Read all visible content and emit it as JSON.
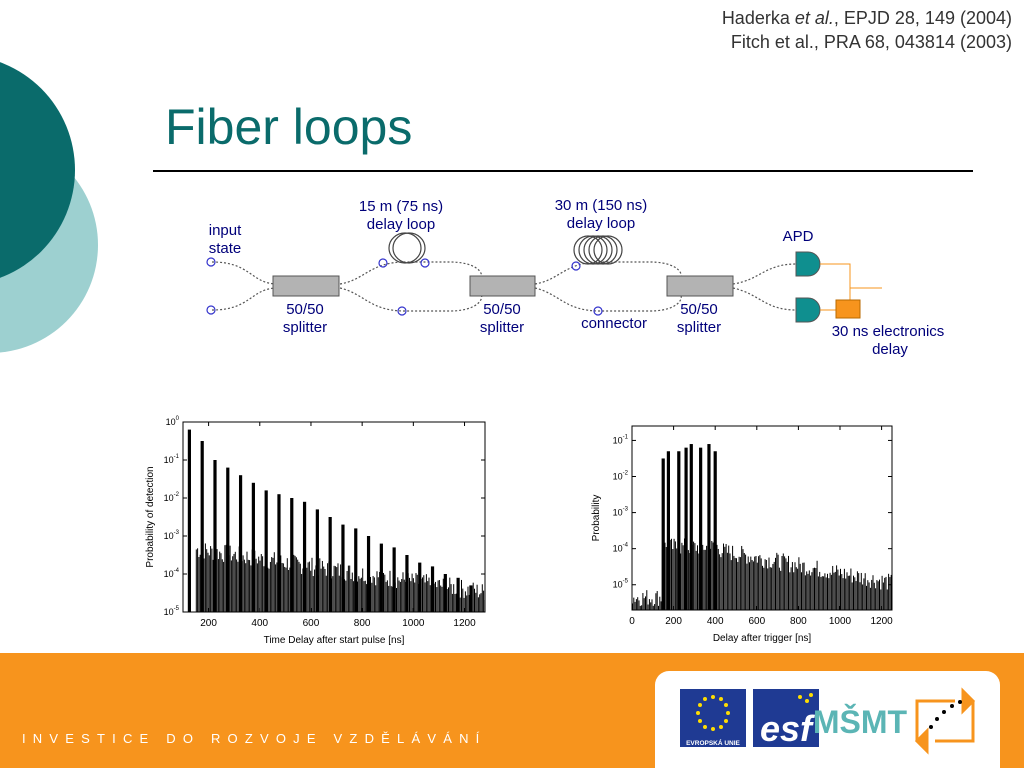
{
  "references": {
    "line1_author": "Haderka ",
    "line1_etal": "et al.",
    "line1_rest": ", EPJD 28, 149 (2004)",
    "line2": "Fitch et al., PRA 68, 043814 (2003)"
  },
  "title": "Fiber loops",
  "diagram": {
    "input_state": [
      "input",
      "state"
    ],
    "loop1": [
      "15 m (75 ns)",
      "delay loop"
    ],
    "loop2": [
      "30 m (150 ns)",
      "delay loop"
    ],
    "apd": "APD",
    "splitter": [
      "50/50",
      "splitter"
    ],
    "connector": "connector",
    "electronics": [
      "30 ns electronics",
      "delay"
    ]
  },
  "chart_data": [
    {
      "type": "bar",
      "xlabel": "Time Delay after start pulse [ns]",
      "ylabel": "Probability of detection",
      "x_ticks": [
        "200",
        "400",
        "600",
        "800",
        "1000",
        "1200"
      ],
      "y_tick_exponents": [
        "0",
        "-1",
        "-2",
        "-3",
        "-4",
        "-5"
      ],
      "y_scale": "log",
      "xlim": [
        100,
        1280
      ],
      "ylim_exp": [
        -5,
        0
      ],
      "peaks_x": [
        125,
        175,
        225,
        275,
        325,
        375,
        425,
        475,
        525,
        575,
        625,
        675,
        725,
        775,
        825,
        875,
        925,
        975,
        1025,
        1075,
        1125,
        1175,
        1225
      ],
      "peaks_exp": [
        -0.2,
        -0.5,
        -1.0,
        -1.2,
        -1.4,
        -1.6,
        -1.8,
        -1.9,
        -2.0,
        -2.1,
        -2.3,
        -2.5,
        -2.7,
        -2.8,
        -3.0,
        -3.2,
        -3.3,
        -3.5,
        -3.7,
        -3.8,
        -4.0,
        -4.1,
        -4.3
      ]
    },
    {
      "type": "bar",
      "xlabel": "Delay after trigger [ns]",
      "ylabel": "Probability",
      "x_ticks": [
        "0",
        "200",
        "400",
        "600",
        "800",
        "1000",
        "1200"
      ],
      "y_tick_exponents": [
        "-1",
        "-2",
        "-3",
        "-4",
        "-5"
      ],
      "y_scale": "log",
      "xlim": [
        0,
        1250
      ],
      "ylim_exp": [
        -5.7,
        -0.6
      ],
      "peaks_x": [
        150,
        175,
        225,
        260,
        285,
        330,
        370,
        400
      ],
      "peaks_exp": [
        -1.5,
        -1.3,
        -1.3,
        -1.2,
        -1.1,
        -1.2,
        -1.1,
        -1.3
      ]
    }
  ],
  "footer": {
    "text": "INVESTICE DO ROZVOJE VZDĚLÁVÁNÍ",
    "logos": {
      "eu_label": "EVROPSKÁ UNIE",
      "esf": "esf",
      "msmt": "MŠMT"
    }
  },
  "colors": {
    "teal_dark": "#0a6b6b",
    "teal_light": "#9dd0d0",
    "footer_orange": "#f7941d",
    "diagram_text": "#00007a",
    "apd_teal": "#0f8f8f",
    "electronics_orange": "#f7941d"
  }
}
